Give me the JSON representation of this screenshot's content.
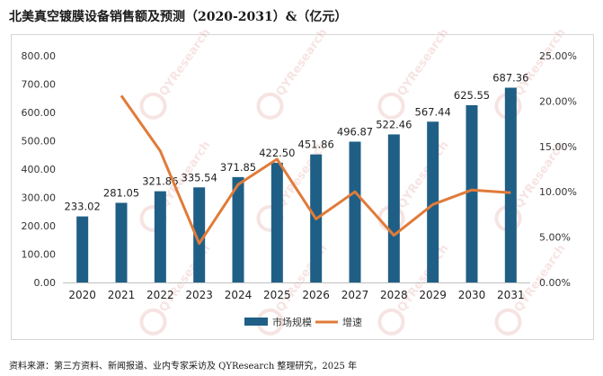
{
  "title": "北美真空镀膜设备销售额及预测（2020-2031）&（亿元）",
  "source": "资料来源：第三方资料、新闻报道、业内专家采访及 QYResearch 整理研究，2025 年",
  "watermark": "QYResearch",
  "colors": {
    "bar": "#1f5f86",
    "line": "#e07b39",
    "axis_text": "#333333"
  },
  "chart_data": {
    "type": "bar",
    "categories": [
      "2020",
      "2021",
      "2022",
      "2023",
      "2024",
      "2025",
      "2026",
      "2027",
      "2028",
      "2029",
      "2030",
      "2031"
    ],
    "series": [
      {
        "name": "市场规模",
        "type": "bar",
        "axis": "left",
        "values": [
          233.02,
          281.05,
          321.86,
          335.54,
          371.85,
          422.5,
          451.86,
          496.87,
          522.46,
          567.44,
          625.55,
          687.36
        ],
        "labels": [
          "233.02",
          "281.05",
          "321.86",
          "335.54",
          "371.85",
          "422.50",
          "451.86",
          "496.87",
          "522.46",
          "567.44",
          "625.55",
          "687.36"
        ]
      },
      {
        "name": "增速",
        "type": "line",
        "axis": "right",
        "values": [
          null,
          20.6,
          14.5,
          4.3,
          10.8,
          13.6,
          7.0,
          10.0,
          5.2,
          8.6,
          10.2,
          9.9
        ]
      }
    ],
    "y_left": {
      "min": 0,
      "max": 800,
      "ticks": [
        "0.00",
        "100.00",
        "200.00",
        "300.00",
        "400.00",
        "500.00",
        "600.00",
        "700.00",
        "800.00"
      ]
    },
    "y_right": {
      "min": 0,
      "max": 25,
      "ticks": [
        "0.00%",
        "5.00%",
        "10.00%",
        "15.00%",
        "20.00%",
        "25.00%"
      ]
    },
    "legend_position": "bottom",
    "grid": false
  }
}
